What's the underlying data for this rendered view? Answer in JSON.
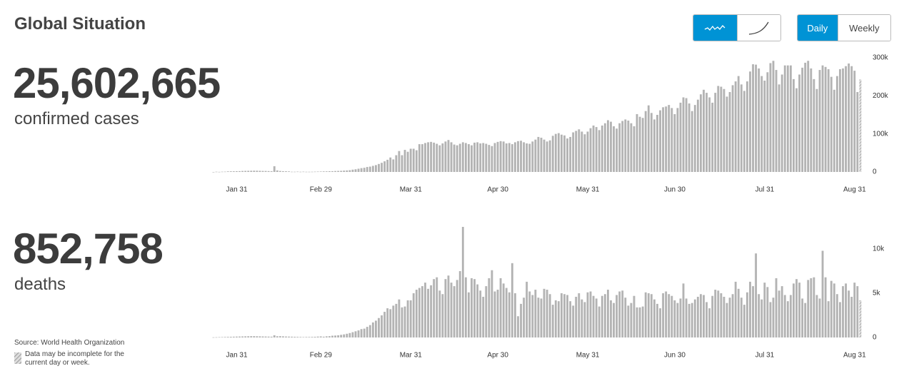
{
  "header": {
    "title": "Global Situation"
  },
  "controls": {
    "views": [
      "Daily",
      "Weekly"
    ]
  },
  "summary": [
    {
      "value": "25,602,665",
      "label": "confirmed cases"
    },
    {
      "value": "852,758",
      "label": "deaths"
    }
  ],
  "footer": {
    "source": "Source: World Health Organization",
    "note": "Data may be incomplete for the current day or week."
  },
  "chart_data": [
    {
      "type": "bar",
      "color": "#b3b3b3",
      "categories": [
        null,
        null,
        null,
        null,
        null,
        null,
        null,
        null,
        "Jan 31",
        null,
        null,
        null,
        null,
        null,
        null,
        null,
        null,
        null,
        null,
        null,
        null,
        null,
        null,
        null,
        null,
        null,
        null,
        null,
        null,
        null,
        null,
        null,
        null,
        null,
        null,
        null,
        null,
        "Feb 29",
        null,
        null,
        null,
        null,
        null,
        null,
        null,
        null,
        null,
        null,
        null,
        null,
        null,
        null,
        null,
        null,
        null,
        null,
        null,
        null,
        null,
        null,
        null,
        null,
        null,
        null,
        null,
        null,
        null,
        null,
        "Mar 31",
        null,
        null,
        null,
        null,
        null,
        null,
        null,
        null,
        null,
        null,
        null,
        null,
        null,
        null,
        null,
        null,
        null,
        null,
        null,
        null,
        null,
        null,
        null,
        null,
        null,
        null,
        null,
        null,
        null,
        "Apr 30",
        null,
        null,
        null,
        null,
        null,
        null,
        null,
        null,
        null,
        null,
        null,
        null,
        null,
        null,
        null,
        null,
        null,
        null,
        null,
        null,
        null,
        null,
        null,
        null,
        null,
        null,
        null,
        null,
        null,
        null,
        "May 31",
        null,
        null,
        null,
        null,
        null,
        null,
        null,
        null,
        null,
        null,
        null,
        null,
        null,
        null,
        null,
        null,
        null,
        null,
        null,
        null,
        null,
        null,
        null,
        null,
        null,
        null,
        null,
        null,
        null,
        "Jun 30",
        null,
        null,
        null,
        null,
        null,
        null,
        null,
        null,
        null,
        null,
        null,
        null,
        null,
        null,
        null,
        null,
        null,
        null,
        null,
        null,
        null,
        null,
        null,
        null,
        null,
        null,
        null,
        null,
        null,
        null,
        "Jul 31",
        null,
        null,
        null,
        null,
        null,
        null,
        null,
        null,
        null,
        null,
        null,
        null,
        null,
        null,
        null,
        null,
        null,
        null,
        null,
        null,
        null,
        null,
        null,
        null,
        null,
        null,
        null,
        null,
        null,
        null,
        "Aug 31",
        null,
        null
      ],
      "values": [
        0,
        600,
        300,
        700,
        800,
        1500,
        1700,
        1800,
        2000,
        2100,
        2600,
        2800,
        3000,
        3200,
        3400,
        3300,
        3000,
        2700,
        2600,
        2300,
        2000,
        15000,
        4000,
        2600,
        2000,
        1800,
        1500,
        600,
        600,
        900,
        500,
        800,
        500,
        500,
        600,
        800,
        1000,
        1200,
        1500,
        1600,
        1900,
        2000,
        2400,
        2700,
        3000,
        3600,
        4000,
        4600,
        6000,
        7000,
        8500,
        10000,
        11000,
        13000,
        14000,
        16000,
        18000,
        21000,
        24000,
        28000,
        32000,
        38000,
        33000,
        44000,
        55000,
        44000,
        58000,
        53000,
        61000,
        61000,
        57000,
        73000,
        73000,
        76000,
        78000,
        79000,
        77000,
        74000,
        70000,
        75000,
        80000,
        84000,
        78000,
        72000,
        70000,
        74000,
        78000,
        76000,
        73000,
        70000,
        77000,
        78000,
        75000,
        76000,
        74000,
        71000,
        68000,
        76000,
        79000,
        81000,
        80000,
        75000,
        76000,
        73000,
        78000,
        81000,
        82000,
        78000,
        75000,
        74000,
        80000,
        85000,
        92000,
        90000,
        85000,
        80000,
        83000,
        95000,
        100000,
        102000,
        98000,
        96000,
        88000,
        92000,
        104000,
        108000,
        112000,
        106000,
        99000,
        106000,
        115000,
        122000,
        118000,
        110000,
        122000,
        128000,
        136000,
        132000,
        120000,
        114000,
        128000,
        134000,
        138000,
        135000,
        128000,
        120000,
        152000,
        145000,
        142000,
        160000,
        175000,
        155000,
        138000,
        150000,
        162000,
        170000,
        172000,
        176000,
        168000,
        152000,
        168000,
        182000,
        196000,
        194000,
        180000,
        160000,
        176000,
        190000,
        204000,
        216000,
        208000,
        196000,
        182000,
        208000,
        226000,
        224000,
        218000,
        198000,
        210000,
        228000,
        238000,
        252000,
        230000,
        213000,
        238000,
        264000,
        283000,
        282000,
        272000,
        252000,
        240000,
        262000,
        286000,
        292000,
        268000,
        230000,
        256000,
        280000,
        280000,
        280000,
        244000,
        220000,
        256000,
        274000,
        287000,
        292000,
        272000,
        244000,
        218000,
        268000,
        280000,
        276000,
        270000,
        250000,
        216000,
        252000,
        270000,
        272000,
        278000,
        285000,
        278000,
        266000,
        210000,
        243000
      ],
      "ylim": [
        0,
        300000
      ],
      "yticks": [
        0,
        {
          "value": 100000,
          "label": "100k"
        },
        {
          "value": 200000,
          "label": "200k"
        },
        {
          "value": 300000,
          "label": "300k"
        }
      ]
    },
    {
      "type": "bar",
      "color": "#b3b3b3",
      "categories": [
        null,
        null,
        null,
        null,
        null,
        null,
        null,
        null,
        "Jan 31",
        null,
        null,
        null,
        null,
        null,
        null,
        null,
        null,
        null,
        null,
        null,
        null,
        null,
        null,
        null,
        null,
        null,
        null,
        null,
        null,
        null,
        null,
        null,
        null,
        null,
        null,
        null,
        null,
        "Feb 29",
        null,
        null,
        null,
        null,
        null,
        null,
        null,
        null,
        null,
        null,
        null,
        null,
        null,
        null,
        null,
        null,
        null,
        null,
        null,
        null,
        null,
        null,
        null,
        null,
        null,
        null,
        null,
        null,
        null,
        null,
        "Mar 31",
        null,
        null,
        null,
        null,
        null,
        null,
        null,
        null,
        null,
        null,
        null,
        null,
        null,
        null,
        null,
        null,
        null,
        null,
        null,
        null,
        null,
        null,
        null,
        null,
        null,
        null,
        null,
        null,
        null,
        "Apr 30",
        null,
        null,
        null,
        null,
        null,
        null,
        null,
        null,
        null,
        null,
        null,
        null,
        null,
        null,
        null,
        null,
        null,
        null,
        null,
        null,
        null,
        null,
        null,
        null,
        null,
        null,
        null,
        null,
        null,
        null,
        "May 31",
        null,
        null,
        null,
        null,
        null,
        null,
        null,
        null,
        null,
        null,
        null,
        null,
        null,
        null,
        null,
        null,
        null,
        null,
        null,
        null,
        null,
        null,
        null,
        null,
        null,
        null,
        null,
        null,
        null,
        "Jun 30",
        null,
        null,
        null,
        null,
        null,
        null,
        null,
        null,
        null,
        null,
        null,
        null,
        null,
        null,
        null,
        null,
        null,
        null,
        null,
        null,
        null,
        null,
        null,
        null,
        null,
        null,
        null,
        null,
        null,
        null,
        "Jul 31",
        null,
        null,
        null,
        null,
        null,
        null,
        null,
        null,
        null,
        null,
        null,
        null,
        null,
        null,
        null,
        null,
        null,
        null,
        null,
        null,
        null,
        null,
        null,
        null,
        null,
        null,
        null,
        null,
        null,
        null,
        "Aug 31",
        null,
        null
      ],
      "values": [
        20,
        30,
        40,
        50,
        60,
        70,
        80,
        90,
        100,
        110,
        120,
        130,
        140,
        150,
        150,
        140,
        130,
        120,
        110,
        100,
        90,
        250,
        140,
        150,
        130,
        110,
        100,
        90,
        80,
        70,
        60,
        50,
        60,
        60,
        70,
        80,
        100,
        120,
        90,
        130,
        150,
        200,
        220,
        250,
        300,
        350,
        420,
        500,
        600,
        700,
        800,
        950,
        1000,
        1200,
        1400,
        1700,
        1900,
        2200,
        2500,
        2900,
        3300,
        3200,
        3600,
        3800,
        4300,
        3400,
        3500,
        4200,
        4200,
        5000,
        5400,
        5600,
        5800,
        6200,
        5500,
        5900,
        6600,
        6800,
        5300,
        4900,
        6600,
        7000,
        6200,
        5800,
        6500,
        7500,
        12500,
        6800,
        5100,
        6700,
        6600,
        6000,
        5300,
        4600,
        5800,
        6700,
        7600,
        5200,
        5400,
        6700,
        6100,
        5600,
        5100,
        8400,
        5000,
        2400,
        3800,
        4500,
        6300,
        5200,
        4800,
        5400,
        4500,
        4400,
        5500,
        5400,
        4900,
        3700,
        4200,
        4100,
        5000,
        4900,
        4800,
        4100,
        3600,
        4600,
        5000,
        4300,
        4000,
        5100,
        5200,
        4700,
        4400,
        3500,
        4700,
        4900,
        5400,
        4200,
        3900,
        4800,
        5200,
        5300,
        4500,
        3600,
        3900,
        4700,
        3400,
        3400,
        3500,
        5100,
        5000,
        4900,
        4300,
        3800,
        3300,
        5000,
        5200,
        4900,
        4700,
        4200,
        3900,
        4400,
        6100,
        4400,
        3800,
        3900,
        4300,
        4600,
        4900,
        4800,
        4000,
        3300,
        4700,
        5400,
        5300,
        5000,
        4600,
        3900,
        4500,
        4900,
        6300,
        5500,
        4500,
        3700,
        5100,
        6300,
        5800,
        9500,
        4900,
        4300,
        6200,
        5700,
        4000,
        4500,
        6700,
        5300,
        5800,
        4800,
        4100,
        4800,
        6100,
        6600,
        6200,
        4400,
        3900,
        6500,
        6700,
        6800,
        4800,
        4400,
        9800,
        6800,
        4100,
        6400,
        6100,
        4900,
        4000,
        5800,
        6100,
        5300,
        4600,
        6200,
        5800,
        4200
      ],
      "ylim": [
        0,
        12500
      ],
      "yticks": [
        0,
        {
          "value": 5000,
          "label": "5k"
        },
        {
          "value": 10000,
          "label": "10k"
        }
      ]
    }
  ]
}
